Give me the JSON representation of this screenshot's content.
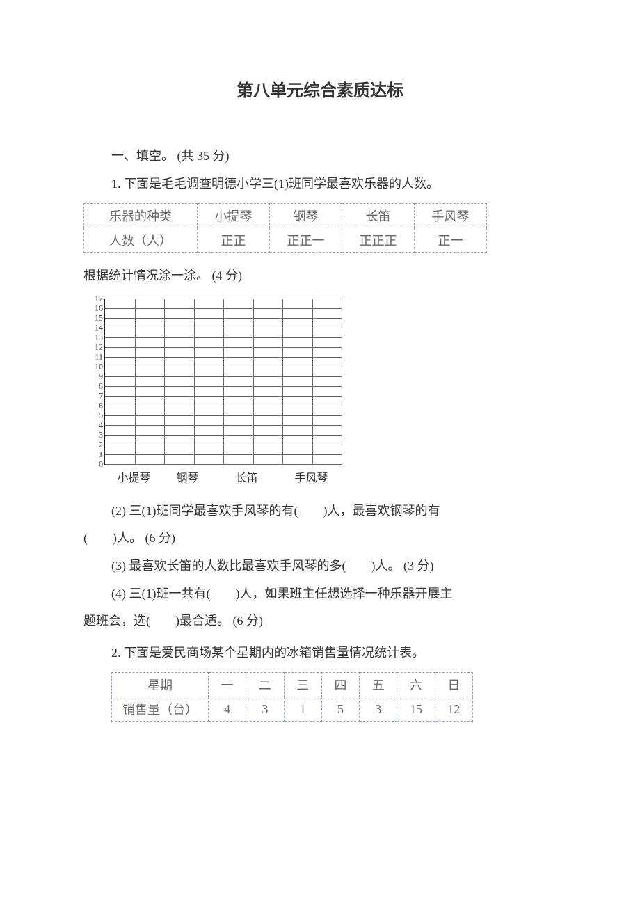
{
  "title": "第八单元综合素质达标",
  "section1": {
    "label": "一、填空。  (共 35 分)",
    "q1_intro": "1.  下面是毛毛调查明德小学三(1)班同学最喜欢乐器的人数。",
    "tally_table": {
      "header": "乐器的种类",
      "row_header": "人数（人）",
      "cols": [
        "小提琴",
        "钢琴",
        "长笛",
        "手风琴"
      ],
      "tallies": [
        "正正",
        "正正一",
        "正正正",
        "正一"
      ]
    },
    "q1_sub1": "根据统计情况涂一涂。  (4 分)",
    "chart": {
      "y_ticks": [
        "17",
        "16",
        "15",
        "14",
        "13",
        "12",
        "11",
        "10",
        "9",
        "8",
        "7",
        "6",
        "5",
        "4",
        "3",
        "2",
        "1",
        "0"
      ],
      "x_labels": [
        "小提琴",
        "钢琴",
        "长笛",
        "手风琴"
      ]
    },
    "q1_sub2_a": "(2)  三(1)班同学最喜欢手风琴的有(  )人，最喜欢钢琴的有",
    "q1_sub2_b": "(  )人。  (6 分)",
    "q1_sub3": "(3)  最喜欢长笛的人数比最喜欢手风琴的多(  )人。  (3 分)",
    "q1_sub4_a": "(4)  三(1)班一共有(  )人，如果班主任想选择一种乐器开展主",
    "q1_sub4_b": "题班会，选(  )最合适。  (6 分)",
    "q2_intro": "2.  下面是爱民商场某个星期内的冰箱销售量情况统计表。",
    "sales_table": {
      "header": "星期",
      "row_header": "销售量（台）",
      "days": [
        "一",
        "二",
        "三",
        "四",
        "五",
        "六",
        "日"
      ],
      "values": [
        "4",
        "3",
        "1",
        "5",
        "3",
        "15",
        "12"
      ]
    }
  }
}
